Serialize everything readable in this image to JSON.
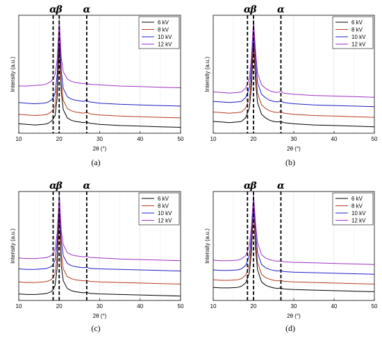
{
  "colors": {
    "6 kV": "#000000",
    "8 kV": "#b5391e",
    "10 kV": "#1c1cc9",
    "12 kV": "#a02fc4"
  },
  "chart_data": [
    {
      "type": "line",
      "panel_label": "(a)",
      "xlabel": "2θ (°)",
      "ylabel": "Intensity (a.u.)",
      "xlim": [
        10,
        50
      ],
      "ylim": [
        0,
        100
      ],
      "xticks": [
        10,
        20,
        30,
        40,
        50
      ],
      "grid": "vertical",
      "legend": "top-right",
      "y_tick_labels": false,
      "annotations": [
        {
          "text": "α",
          "x": 18.5,
          "dashed_line": true
        },
        {
          "text": "β",
          "x": 20.0,
          "dashed_line": true
        },
        {
          "text": "α",
          "x": 26.8,
          "dashed_line": true
        }
      ],
      "x": [
        10,
        12,
        14,
        16,
        17,
        18,
        18.5,
        19,
        19.5,
        20,
        20.5,
        21,
        22,
        23,
        24,
        25,
        26,
        26.8,
        27.5,
        30,
        35,
        40,
        45,
        50
      ],
      "series": [
        {
          "name": "6 kV",
          "values": [
            8,
            7.5,
            7,
            7.5,
            8,
            10,
            12,
            15,
            30,
            76,
            35,
            20,
            13,
            11,
            10,
            9.5,
            9,
            9.5,
            8.5,
            7.5,
            6.5,
            6,
            5.5,
            5
          ]
        },
        {
          "name": "8 kV",
          "values": [
            16,
            15.5,
            15,
            15.5,
            16,
            18,
            20,
            23,
            40,
            88,
            43,
            28,
            21,
            19,
            18,
            17.5,
            17,
            18,
            16.5,
            15.5,
            14.5,
            14,
            13.5,
            13
          ]
        },
        {
          "name": "10 kV",
          "values": [
            26,
            25.5,
            25,
            25.5,
            26,
            28,
            30,
            34,
            50,
            96,
            53,
            38,
            31,
            29,
            28,
            27.5,
            27,
            28,
            26.5,
            25.5,
            24.5,
            24,
            23.5,
            23
          ]
        },
        {
          "name": "12 kV",
          "values": [
            40,
            40,
            40.5,
            41,
            42,
            44,
            46,
            50,
            62,
            96,
            64,
            52,
            46,
            44,
            43,
            42.5,
            42,
            42.5,
            41.5,
            41,
            40,
            39.5,
            39,
            38.5
          ]
        }
      ]
    },
    {
      "type": "line",
      "panel_label": "(b)",
      "xlabel": "2θ (°)",
      "ylabel": "Intensity (a.u.)",
      "xlim": [
        10,
        50
      ],
      "ylim": [
        0,
        100
      ],
      "xticks": [
        10,
        20,
        30,
        40,
        50
      ],
      "grid": "vertical",
      "legend": "top-right",
      "y_tick_labels": false,
      "annotations": [
        {
          "text": "α",
          "x": 18.5,
          "dashed_line": true
        },
        {
          "text": "β",
          "x": 20.0,
          "dashed_line": true
        },
        {
          "text": "α",
          "x": 26.8,
          "dashed_line": true
        }
      ],
      "x": [
        10,
        12,
        14,
        16,
        17,
        18,
        18.5,
        19,
        19.5,
        20,
        20.5,
        21,
        22,
        23,
        24,
        25,
        26,
        26.8,
        27.5,
        30,
        35,
        40,
        45,
        50
      ],
      "series": [
        {
          "name": "6 kV",
          "values": [
            10,
            9.5,
            9,
            9.5,
            10,
            13,
            17,
            22,
            40,
            78,
            45,
            26,
            16,
            13,
            11,
            10,
            9.5,
            10,
            9,
            8,
            7,
            6.5,
            6,
            5.5
          ]
        },
        {
          "name": "8 kV",
          "values": [
            18,
            17.5,
            17,
            17.5,
            18,
            21,
            25,
            30,
            48,
            86,
            53,
            34,
            24,
            21,
            19,
            18,
            17.5,
            18.5,
            17,
            16,
            15,
            14.5,
            14,
            13.5
          ]
        },
        {
          "name": "10 kV",
          "values": [
            27,
            26.5,
            26,
            26.5,
            27,
            30,
            34,
            39,
            57,
            94,
            62,
            43,
            33,
            30,
            28,
            27,
            26.5,
            27.5,
            26,
            25,
            24,
            23.5,
            23,
            22.5
          ]
        },
        {
          "name": "12 kV",
          "values": [
            35,
            34.5,
            34,
            34.5,
            35,
            38,
            42,
            47,
            65,
            96,
            70,
            51,
            41,
            38,
            36,
            35,
            34.5,
            35.5,
            34,
            33,
            32,
            31.5,
            31,
            30.5
          ]
        }
      ]
    },
    {
      "type": "line",
      "panel_label": "(c)",
      "xlabel": "2θ (°)",
      "ylabel": "Intensity (a.u.)",
      "xlim": [
        10,
        50
      ],
      "ylim": [
        0,
        100
      ],
      "xticks": [
        10,
        20,
        30,
        40,
        50
      ],
      "grid": "vertical",
      "legend": "top-right",
      "y_tick_labels": false,
      "annotations": [
        {
          "text": "α",
          "x": 18.5,
          "dashed_line": true
        },
        {
          "text": "β",
          "x": 20.0,
          "dashed_line": true
        },
        {
          "text": "α",
          "x": 26.8,
          "dashed_line": true
        }
      ],
      "x": [
        10,
        12,
        14,
        16,
        17,
        18,
        18.5,
        19,
        19.5,
        20,
        20.5,
        21,
        22,
        23,
        24,
        25,
        26,
        26.8,
        27.5,
        30,
        35,
        40,
        45,
        50
      ],
      "series": [
        {
          "name": "6 kV",
          "values": [
            6,
            5.5,
            5.5,
            6,
            6.5,
            8,
            10,
            14,
            30,
            82,
            32,
            18,
            11,
            9,
            8,
            7.5,
            7,
            7.5,
            6.5,
            6,
            5.5,
            5,
            4.5,
            4
          ]
        },
        {
          "name": "8 kV",
          "values": [
            17,
            16.5,
            16.5,
            17,
            17.5,
            19,
            21,
            25,
            41,
            90,
            43,
            29,
            22,
            20,
            19,
            18.5,
            18,
            18.5,
            17.5,
            17,
            16.5,
            16,
            15.5,
            15
          ]
        },
        {
          "name": "10 kV",
          "values": [
            29,
            28.5,
            28.5,
            29,
            29.5,
            31,
            33,
            37,
            53,
            96,
            55,
            41,
            34,
            32,
            31,
            30.5,
            30,
            30.5,
            29.5,
            29,
            28.5,
            28,
            27.5,
            27
          ]
        },
        {
          "name": "12 kV",
          "values": [
            39,
            38.5,
            38.5,
            39,
            39.5,
            41,
            43,
            47,
            62,
            97,
            64,
            51,
            44,
            42,
            41,
            40.5,
            40,
            40.5,
            39.5,
            39,
            38,
            37.5,
            37,
            36.5
          ]
        }
      ]
    },
    {
      "type": "line",
      "panel_label": "(d)",
      "xlabel": "2θ (°)",
      "ylabel": "Intensity (a.u.)",
      "xlim": [
        10,
        50
      ],
      "ylim": [
        0,
        100
      ],
      "xticks": [
        10,
        20,
        30,
        40,
        50
      ],
      "grid": "vertical",
      "legend": "top-right",
      "y_tick_labels": false,
      "annotations": [
        {
          "text": "α",
          "x": 18.5,
          "dashed_line": true
        },
        {
          "text": "β",
          "x": 20.0,
          "dashed_line": true
        },
        {
          "text": "α",
          "x": 26.8,
          "dashed_line": true
        }
      ],
      "x": [
        10,
        12,
        14,
        16,
        17,
        18,
        18.5,
        19,
        19.5,
        20,
        20.5,
        21,
        22,
        23,
        24,
        25,
        26,
        26.8,
        27.5,
        30,
        35,
        40,
        45,
        50
      ],
      "series": [
        {
          "name": "6 kV",
          "values": [
            12,
            11.5,
            11.5,
            12,
            13,
            16,
            20,
            26,
            45,
            86,
            48,
            28,
            17,
            14,
            12.5,
            11.5,
            11,
            11.5,
            10.5,
            10,
            9.5,
            9,
            8.5,
            8
          ]
        },
        {
          "name": "8 kV",
          "values": [
            19,
            18.5,
            18.5,
            19,
            20,
            23,
            27,
            33,
            52,
            90,
            55,
            35,
            24,
            21,
            19.5,
            18.5,
            18,
            18.5,
            17.5,
            17,
            16.5,
            16,
            15.5,
            15
          ]
        },
        {
          "name": "10 kV",
          "values": [
            28,
            27.5,
            27.5,
            28,
            29,
            32,
            36,
            42,
            60,
            95,
            63,
            44,
            33,
            30,
            28.5,
            27.5,
            27,
            27.5,
            26.5,
            26,
            25.5,
            25,
            24.5,
            24
          ]
        },
        {
          "name": "12 kV",
          "values": [
            37,
            36.5,
            36.5,
            37,
            38,
            41,
            45,
            51,
            68,
            97,
            71,
            53,
            42,
            39,
            37.5,
            36.5,
            36,
            36.5,
            35.5,
            35,
            34.5,
            34,
            33.5,
            33
          ]
        }
      ]
    }
  ]
}
